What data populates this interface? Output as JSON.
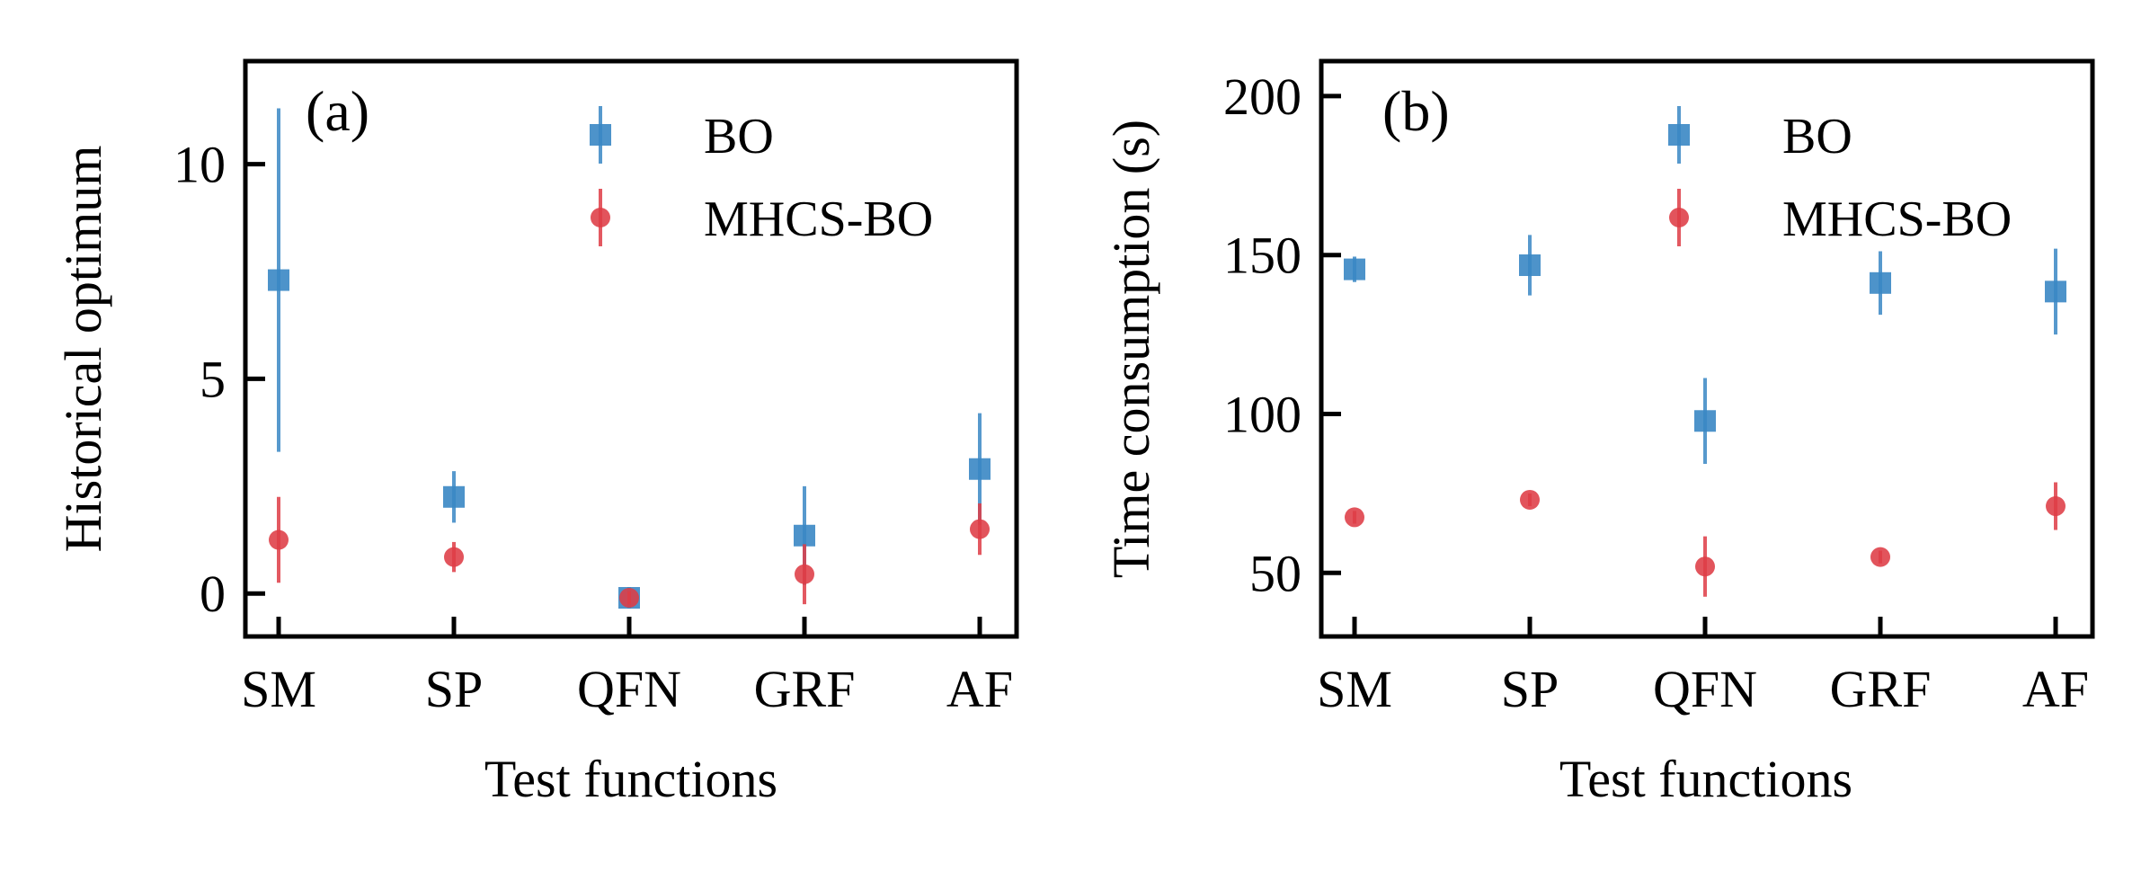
{
  "colors": {
    "bo": "#3a87c4",
    "mhcs": "#de3c45",
    "axis": "#000000"
  },
  "legend": [
    "BO",
    "MHCS-BO"
  ],
  "chart_data": [
    {
      "type": "scatter",
      "panel_label": "(a)",
      "xlabel": "Test functions",
      "ylabel": "Historical optimum",
      "categories": [
        "SM",
        "SP",
        "QFN",
        "GRF",
        "AF"
      ],
      "ylim": [
        -1,
        12.4
      ],
      "yticks": [
        0,
        5,
        10
      ],
      "ytick_labels": [
        "0",
        "5",
        "10"
      ],
      "legend_loc": "upper right",
      "series": [
        {
          "name": "BO",
          "marker": "square",
          "color": "#3a87c4",
          "values": [
            7.3,
            2.25,
            -0.1,
            1.35,
            2.9
          ],
          "errors": [
            4.0,
            0.6,
            0.25,
            1.15,
            1.3
          ]
        },
        {
          "name": "MHCS-BO",
          "marker": "circle",
          "color": "#de3c45",
          "values": [
            1.25,
            0.85,
            -0.1,
            0.45,
            1.5
          ],
          "errors": [
            1.0,
            0.35,
            0.15,
            0.7,
            0.6
          ]
        }
      ]
    },
    {
      "type": "scatter",
      "panel_label": "(b)",
      "xlabel": "Test functions",
      "ylabel": "Time consumption (s)",
      "categories": [
        "SM",
        "SP",
        "QFN",
        "GRF",
        "AF"
      ],
      "ylim": [
        30,
        211
      ],
      "yticks": [
        50,
        100,
        150,
        200
      ],
      "ytick_labels": [
        "50",
        "100",
        "150",
        "200"
      ],
      "legend_loc": "upper right",
      "series": [
        {
          "name": "BO",
          "marker": "square",
          "color": "#3a87c4",
          "values": [
            145.5,
            146.8,
            97.8,
            141.2,
            138.5
          ],
          "errors": [
            4.0,
            9.5,
            13.5,
            10.0,
            13.5
          ]
        },
        {
          "name": "MHCS-BO",
          "marker": "circle",
          "color": "#de3c45",
          "values": [
            67.5,
            73.0,
            52.0,
            55.0,
            71.0
          ],
          "errors": [
            2.0,
            2.0,
            9.5,
            2.0,
            7.5
          ]
        }
      ]
    }
  ]
}
